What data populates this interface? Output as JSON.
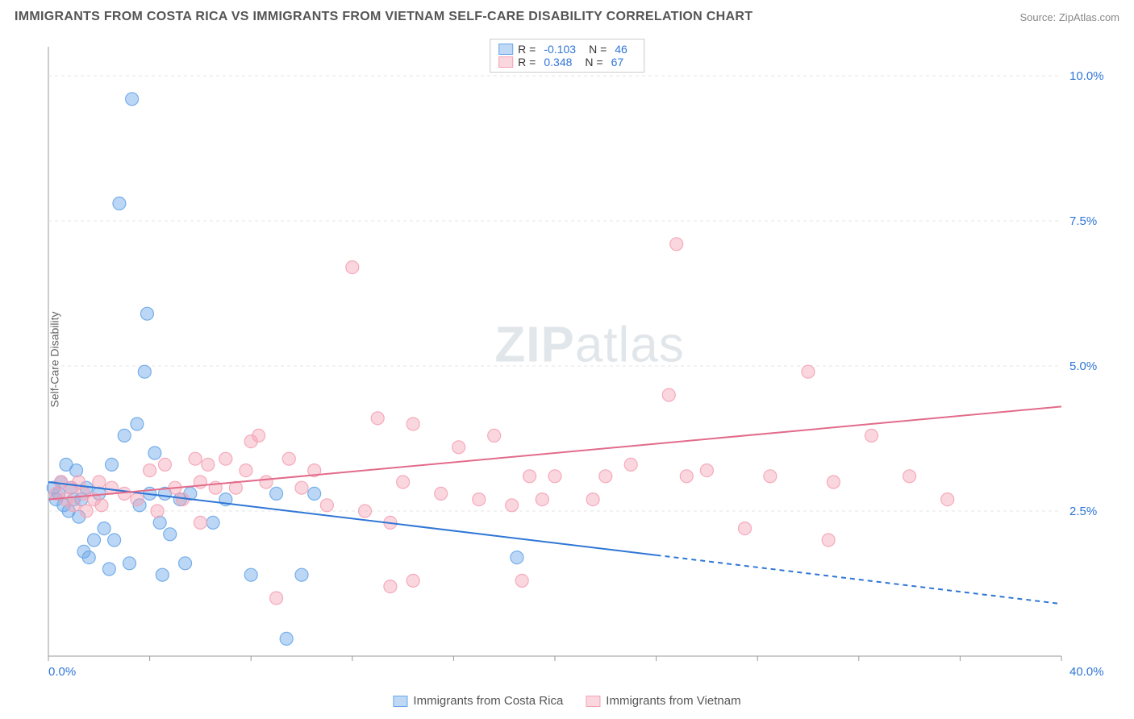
{
  "header": {
    "title": "IMMIGRANTS FROM COSTA RICA VS IMMIGRANTS FROM VIETNAM SELF-CARE DISABILITY CORRELATION CHART",
    "source": "Source: ZipAtlas.com"
  },
  "watermark": {
    "zip": "ZIP",
    "rest": "atlas"
  },
  "chart": {
    "type": "scatter",
    "ylabel": "Self-Care Disability",
    "xlim": [
      0,
      40
    ],
    "ylim": [
      0,
      10.5
    ],
    "xticks": [
      0,
      40
    ],
    "xtick_labels": [
      "0.0%",
      "40.0%"
    ],
    "yticks": [
      2.5,
      5.0,
      7.5,
      10.0
    ],
    "ytick_labels": [
      "2.5%",
      "5.0%",
      "7.5%",
      "10.0%"
    ],
    "background_color": "#ffffff",
    "grid_color": "#e5e5e5",
    "axis_label_color": "#2f76d6",
    "marker_radius": 8,
    "marker_opacity": 0.45,
    "marker_stroke_opacity": 0.9,
    "line_width": 2,
    "series": [
      {
        "name": "Immigrants from Costa Rica",
        "short": "costa_rica",
        "color": "#6aa7e8",
        "line_color": "#2f76d6",
        "R": "-0.103",
        "N": "46",
        "trend": {
          "x1": 0,
          "y1": 3.0,
          "x2": 40,
          "y2": 0.9,
          "solid_until_x": 24
        },
        "points": [
          [
            0.2,
            2.9
          ],
          [
            0.3,
            2.7
          ],
          [
            0.4,
            2.8
          ],
          [
            0.5,
            3.0
          ],
          [
            0.6,
            2.6
          ],
          [
            0.7,
            3.3
          ],
          [
            0.8,
            2.5
          ],
          [
            0.9,
            2.9
          ],
          [
            1.0,
            2.7
          ],
          [
            1.1,
            3.2
          ],
          [
            1.2,
            2.4
          ],
          [
            1.3,
            2.7
          ],
          [
            1.4,
            1.8
          ],
          [
            1.5,
            2.9
          ],
          [
            1.6,
            1.7
          ],
          [
            1.8,
            2.0
          ],
          [
            2.0,
            2.8
          ],
          [
            2.2,
            2.2
          ],
          [
            2.4,
            1.5
          ],
          [
            2.5,
            3.3
          ],
          [
            2.6,
            2.0
          ],
          [
            2.8,
            7.8
          ],
          [
            3.0,
            3.8
          ],
          [
            3.2,
            1.6
          ],
          [
            3.3,
            9.6
          ],
          [
            3.5,
            4.0
          ],
          [
            3.6,
            2.6
          ],
          [
            3.8,
            4.9
          ],
          [
            3.9,
            5.9
          ],
          [
            4.0,
            2.8
          ],
          [
            4.2,
            3.5
          ],
          [
            4.4,
            2.3
          ],
          [
            4.6,
            2.8
          ],
          [
            4.8,
            2.1
          ],
          [
            5.2,
            2.7
          ],
          [
            5.4,
            1.6
          ],
          [
            5.6,
            2.8
          ],
          [
            6.5,
            2.3
          ],
          [
            7.0,
            2.7
          ],
          [
            8.0,
            1.4
          ],
          [
            9.0,
            2.8
          ],
          [
            9.4,
            0.3
          ],
          [
            10.0,
            1.4
          ],
          [
            10.5,
            2.8
          ],
          [
            18.5,
            1.7
          ],
          [
            4.5,
            1.4
          ]
        ]
      },
      {
        "name": "Immigrants from Vietnam",
        "short": "vietnam",
        "color": "#f4a3b6",
        "line_color": "#e26b8a",
        "R": "0.348",
        "N": "67",
        "trend": {
          "x1": 0,
          "y1": 2.7,
          "x2": 40,
          "y2": 4.3,
          "solid_until_x": 40
        },
        "points": [
          [
            0.3,
            2.8
          ],
          [
            0.5,
            3.0
          ],
          [
            0.7,
            2.7
          ],
          [
            0.9,
            2.9
          ],
          [
            1.0,
            2.6
          ],
          [
            1.2,
            3.0
          ],
          [
            1.4,
            2.8
          ],
          [
            1.5,
            2.5
          ],
          [
            1.8,
            2.7
          ],
          [
            2.0,
            3.0
          ],
          [
            2.1,
            2.6
          ],
          [
            2.5,
            2.9
          ],
          [
            3.0,
            2.8
          ],
          [
            3.5,
            2.7
          ],
          [
            4.0,
            3.2
          ],
          [
            4.3,
            2.5
          ],
          [
            4.6,
            3.3
          ],
          [
            5.0,
            2.9
          ],
          [
            5.3,
            2.7
          ],
          [
            5.8,
            3.4
          ],
          [
            6.0,
            3.0
          ],
          [
            6.3,
            3.3
          ],
          [
            6.6,
            2.9
          ],
          [
            7.0,
            3.4
          ],
          [
            7.4,
            2.9
          ],
          [
            7.8,
            3.2
          ],
          [
            8.0,
            3.7
          ],
          [
            8.3,
            3.8
          ],
          [
            8.6,
            3.0
          ],
          [
            9.0,
            1.0
          ],
          [
            9.5,
            3.4
          ],
          [
            10.0,
            2.9
          ],
          [
            10.5,
            3.2
          ],
          [
            11.0,
            2.6
          ],
          [
            12.0,
            6.7
          ],
          [
            12.5,
            2.5
          ],
          [
            13.0,
            4.1
          ],
          [
            13.5,
            2.3
          ],
          [
            14.0,
            3.0
          ],
          [
            14.4,
            4.0
          ],
          [
            15.5,
            2.8
          ],
          [
            16.2,
            3.6
          ],
          [
            17.0,
            2.7
          ],
          [
            17.6,
            3.8
          ],
          [
            18.3,
            2.6
          ],
          [
            18.7,
            1.3
          ],
          [
            19.0,
            3.1
          ],
          [
            19.5,
            2.7
          ],
          [
            20.0,
            3.1
          ],
          [
            21.5,
            2.7
          ],
          [
            22.0,
            3.1
          ],
          [
            23.0,
            3.3
          ],
          [
            24.5,
            4.5
          ],
          [
            24.8,
            7.1
          ],
          [
            25.2,
            3.1
          ],
          [
            26.0,
            3.2
          ],
          [
            27.5,
            2.2
          ],
          [
            28.5,
            3.1
          ],
          [
            30.0,
            4.9
          ],
          [
            30.8,
            2.0
          ],
          [
            31.0,
            3.0
          ],
          [
            32.5,
            3.8
          ],
          [
            34.0,
            3.1
          ],
          [
            35.5,
            2.7
          ],
          [
            13.5,
            1.2
          ],
          [
            14.4,
            1.3
          ],
          [
            6.0,
            2.3
          ]
        ]
      }
    ]
  },
  "bottom_legend": {
    "item1": "Immigrants from Costa Rica",
    "item2": "Immigrants from Vietnam"
  },
  "top_legend": {
    "r_label": "R =",
    "n_label": "N ="
  }
}
